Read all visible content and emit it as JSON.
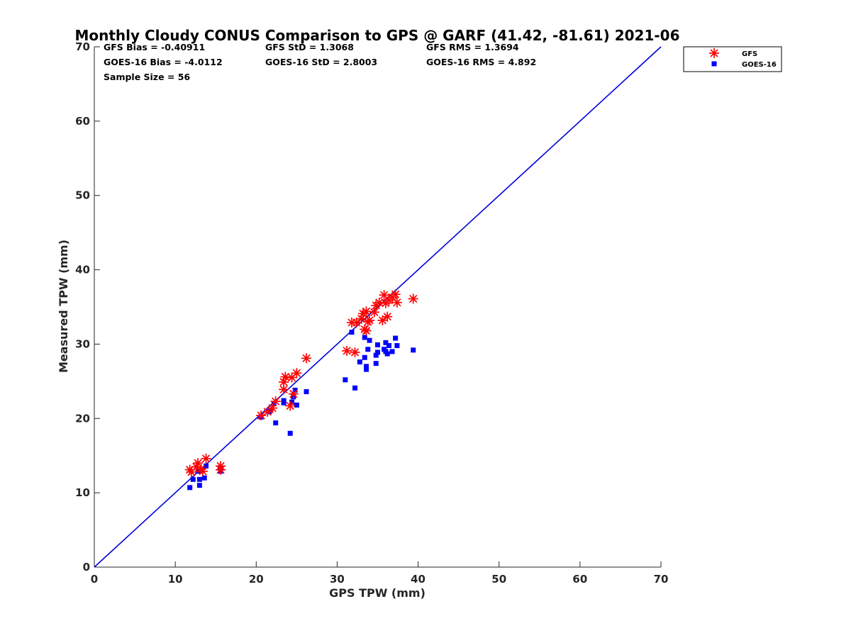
{
  "chart_data": {
    "type": "scatter",
    "title": "Monthly Cloudy CONUS Comparison to GPS @ GARF (41.42, -81.61) 2021-06",
    "xlabel": "GPS TPW (mm)",
    "ylabel": "Measured TPW (mm)",
    "xlim": [
      0,
      70
    ],
    "ylim": [
      0,
      70
    ],
    "xticks": [
      "0",
      "10",
      "20",
      "30",
      "40",
      "50",
      "60",
      "70"
    ],
    "yticks": [
      "0",
      "10",
      "20",
      "30",
      "40",
      "50",
      "60",
      "70"
    ],
    "grid": false,
    "legend_position": "top-right-outside",
    "stats": {
      "gfs_bias": "GFS Bias = -0.40911",
      "gfs_std": "GFS StD = 1.3068",
      "gfs_rms": "GFS RMS = 1.3694",
      "goes_bias": "GOES-16 Bias = -4.0112",
      "goes_std": "GOES-16 StD = 2.8003",
      "goes_rms": "GOES-16 RMS = 4.892",
      "sample_size": "Sample Size = 56"
    },
    "reference_line": {
      "x": [
        0,
        70
      ],
      "y": [
        0,
        70
      ],
      "color": "#0000dd"
    },
    "series": [
      {
        "name": "GFS",
        "marker": "asterisk",
        "color": "#ff0000",
        "points": [
          [
            11.8,
            13.1
          ],
          [
            12.0,
            12.8
          ],
          [
            12.6,
            13.5
          ],
          [
            12.8,
            14.0
          ],
          [
            13.2,
            13.2
          ],
          [
            13.4,
            12.9
          ],
          [
            13.8,
            14.6
          ],
          [
            15.6,
            13.6
          ],
          [
            15.6,
            13.1
          ],
          [
            20.6,
            20.4
          ],
          [
            21.4,
            20.9
          ],
          [
            22.0,
            21.4
          ],
          [
            22.4,
            22.3
          ],
          [
            23.4,
            23.9
          ],
          [
            23.4,
            24.9
          ],
          [
            23.6,
            25.6
          ],
          [
            24.2,
            21.7
          ],
          [
            24.4,
            25.5
          ],
          [
            24.6,
            23.3
          ],
          [
            25.0,
            26.1
          ],
          [
            26.2,
            28.1
          ],
          [
            31.2,
            29.1
          ],
          [
            31.8,
            32.9
          ],
          [
            32.2,
            28.9
          ],
          [
            32.4,
            32.9
          ],
          [
            33.0,
            33.4
          ],
          [
            33.2,
            34.1
          ],
          [
            33.4,
            32.0
          ],
          [
            33.6,
            34.4
          ],
          [
            33.6,
            31.8
          ],
          [
            33.8,
            33.0
          ],
          [
            34.0,
            33.2
          ],
          [
            34.6,
            34.3
          ],
          [
            34.8,
            35.2
          ],
          [
            35.2,
            35.6
          ],
          [
            35.6,
            33.2
          ],
          [
            35.8,
            36.6
          ],
          [
            36.0,
            35.5
          ],
          [
            36.2,
            33.7
          ],
          [
            36.4,
            35.9
          ],
          [
            36.8,
            36.3
          ],
          [
            37.2,
            36.7
          ],
          [
            37.4,
            35.6
          ],
          [
            39.4,
            36.1
          ]
        ]
      },
      {
        "name": "GOES-16",
        "marker": "square",
        "color": "#0000ff",
        "points": [
          [
            11.8,
            10.7
          ],
          [
            12.2,
            11.8
          ],
          [
            12.8,
            12.9
          ],
          [
            13.0,
            11.8
          ],
          [
            13.0,
            11.0
          ],
          [
            13.6,
            12.0
          ],
          [
            13.8,
            13.6
          ],
          [
            15.6,
            13.3
          ],
          [
            15.6,
            12.9
          ],
          [
            20.6,
            20.2
          ],
          [
            21.6,
            20.9
          ],
          [
            21.8,
            21.1
          ],
          [
            22.2,
            22.0
          ],
          [
            22.4,
            19.4
          ],
          [
            23.4,
            22.1
          ],
          [
            23.4,
            22.4
          ],
          [
            24.2,
            18.0
          ],
          [
            24.4,
            22.2
          ],
          [
            24.6,
            22.9
          ],
          [
            24.8,
            23.8
          ],
          [
            25.0,
            21.8
          ],
          [
            26.2,
            23.6
          ],
          [
            31.0,
            25.2
          ],
          [
            31.8,
            31.6
          ],
          [
            32.2,
            24.1
          ],
          [
            32.8,
            27.6
          ],
          [
            33.4,
            30.9
          ],
          [
            33.4,
            28.2
          ],
          [
            33.6,
            26.6
          ],
          [
            33.6,
            27.0
          ],
          [
            33.8,
            29.3
          ],
          [
            34.0,
            30.5
          ],
          [
            34.8,
            27.4
          ],
          [
            34.8,
            28.5
          ],
          [
            35.0,
            29.9
          ],
          [
            35.0,
            28.9
          ],
          [
            35.8,
            29.3
          ],
          [
            36.0,
            30.2
          ],
          [
            36.0,
            29.0
          ],
          [
            36.2,
            28.7
          ],
          [
            36.4,
            29.8
          ],
          [
            36.8,
            29.0
          ],
          [
            37.2,
            30.8
          ],
          [
            37.4,
            29.8
          ],
          [
            39.4,
            29.2
          ]
        ]
      }
    ]
  }
}
